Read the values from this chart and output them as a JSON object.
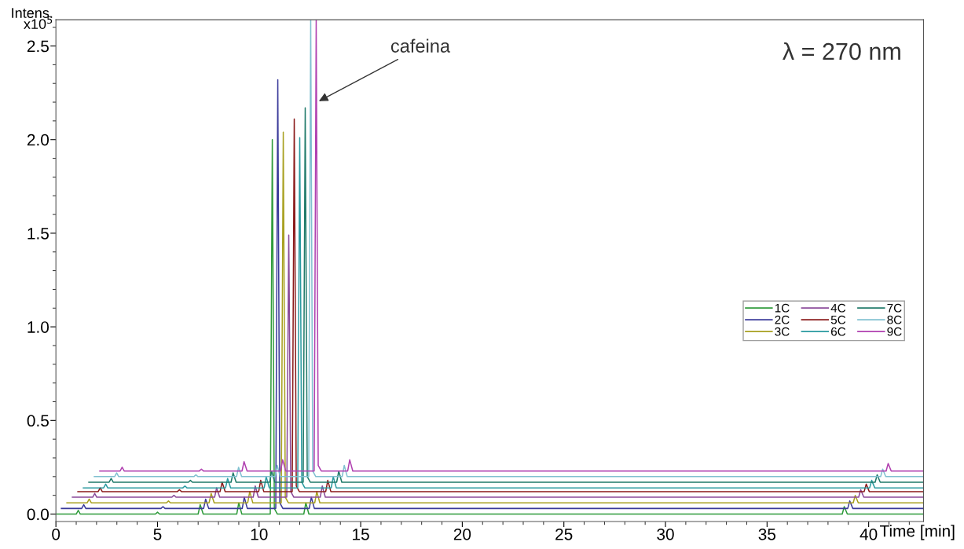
{
  "chart_data": {
    "type": "line",
    "ylabel": "Intens.\nx10$^{5}$",
    "xlabel": "Time [min]",
    "annotations": [
      {
        "text": "cafeina",
        "x": 12.85,
        "y": 2.2
      },
      "λ = 270 nm"
    ],
    "xlim": [
      0,
      42.7
    ],
    "ylim": [
      -0.04,
      2.64
    ],
    "xticks": [
      0,
      5,
      10,
      15,
      20,
      25,
      30,
      35,
      40
    ],
    "yticks": [
      {
        "value": 0,
        "label": "0.0"
      },
      {
        "value": 0.5,
        "label": "0.5"
      },
      {
        "value": 1,
        "label": "1.0"
      },
      {
        "value": 1.5,
        "label": "1.5"
      },
      {
        "value": 2,
        "label": "2.0"
      },
      {
        "value": 2.5,
        "label": "2.5"
      }
    ],
    "grid": false,
    "legend": "right",
    "marker": "none",
    "line_style": "solid",
    "series": [
      {
        "name": "1C",
        "color": "#2e9a3a",
        "x": [
          0,
          1.0,
          1.1,
          1.2,
          4.9,
          5.0,
          5.1,
          7.0,
          7.1,
          7.25,
          8.9,
          9.0,
          9.15,
          10.55,
          10.65,
          10.75,
          10.9,
          12.2,
          12.3,
          12.45,
          38.7,
          38.8,
          38.95,
          42.7
        ],
        "values": [
          0,
          0,
          0.02,
          0,
          0,
          0.01,
          0,
          0,
          0.05,
          0,
          0,
          0.06,
          0,
          0,
          2.0,
          0.03,
          0,
          0,
          0.06,
          0,
          0,
          0.04,
          0,
          0
        ]
      },
      {
        "name": "2C",
        "color": "#3a3a9a",
        "x": [
          0.27,
          1.27,
          1.37,
          1.47,
          5.17,
          5.27,
          5.37,
          7.27,
          7.37,
          7.52,
          9.17,
          9.27,
          9.42,
          10.82,
          10.92,
          11.02,
          11.17,
          12.47,
          12.57,
          12.72,
          38.97,
          39.07,
          39.22,
          42.7
        ],
        "values": [
          0.03,
          0.03,
          0.05,
          0.03,
          0.03,
          0.04,
          0.03,
          0.03,
          0.08,
          0.03,
          0.03,
          0.09,
          0.03,
          0.03,
          2.32,
          0.06,
          0.03,
          0.03,
          0.09,
          0.03,
          0.03,
          0.07,
          0.03,
          0.03
        ]
      },
      {
        "name": "3C",
        "color": "#a8a020",
        "x": [
          0.54,
          1.54,
          1.64,
          1.74,
          5.44,
          5.54,
          5.64,
          7.54,
          7.64,
          7.79,
          9.44,
          9.54,
          9.69,
          11.09,
          11.19,
          11.29,
          11.44,
          12.74,
          12.84,
          12.99,
          39.24,
          39.34,
          39.49,
          42.7
        ],
        "values": [
          0.06,
          0.06,
          0.08,
          0.06,
          0.06,
          0.07,
          0.06,
          0.06,
          0.11,
          0.06,
          0.06,
          0.12,
          0.06,
          0.06,
          2.04,
          0.09,
          0.06,
          0.06,
          0.12,
          0.06,
          0.06,
          0.1,
          0.06,
          0.06
        ]
      },
      {
        "name": "4C",
        "color": "#8a4a9a",
        "x": [
          0.81,
          1.81,
          1.91,
          2.01,
          5.71,
          5.81,
          5.91,
          7.81,
          7.91,
          8.06,
          9.71,
          9.81,
          9.96,
          11.36,
          11.46,
          11.56,
          11.71,
          13.01,
          13.11,
          13.26,
          39.51,
          39.61,
          39.76,
          42.7
        ],
        "values": [
          0.09,
          0.09,
          0.11,
          0.09,
          0.09,
          0.1,
          0.09,
          0.09,
          0.14,
          0.09,
          0.09,
          0.15,
          0.09,
          0.09,
          1.49,
          0.12,
          0.09,
          0.09,
          0.15,
          0.09,
          0.09,
          0.13,
          0.09,
          0.09
        ]
      },
      {
        "name": "5C",
        "color": "#8a1a1a",
        "x": [
          1.08,
          2.08,
          2.18,
          2.28,
          5.98,
          6.08,
          6.18,
          8.08,
          8.18,
          8.33,
          9.98,
          10.08,
          10.23,
          11.63,
          11.73,
          11.83,
          11.98,
          13.28,
          13.38,
          13.53,
          39.78,
          39.88,
          40.03,
          42.7
        ],
        "values": [
          0.12,
          0.12,
          0.14,
          0.12,
          0.12,
          0.13,
          0.12,
          0.12,
          0.17,
          0.12,
          0.12,
          0.18,
          0.12,
          0.12,
          2.11,
          0.15,
          0.12,
          0.12,
          0.18,
          0.12,
          0.12,
          0.16,
          0.12,
          0.12
        ]
      },
      {
        "name": "6C",
        "color": "#2a9aa0",
        "x": [
          1.35,
          2.35,
          2.45,
          2.55,
          6.25,
          6.35,
          6.45,
          8.35,
          8.45,
          8.6,
          10.25,
          10.35,
          10.5,
          11.9,
          12.0,
          12.1,
          12.25,
          13.55,
          13.65,
          13.8,
          40.05,
          40.15,
          40.3,
          42.7
        ],
        "values": [
          0.14,
          0.14,
          0.16,
          0.14,
          0.14,
          0.15,
          0.14,
          0.14,
          0.19,
          0.14,
          0.14,
          0.2,
          0.14,
          0.14,
          2.01,
          0.17,
          0.14,
          0.14,
          0.2,
          0.14,
          0.14,
          0.18,
          0.14,
          0.14
        ]
      },
      {
        "name": "7C",
        "color": "#207a6a",
        "x": [
          1.62,
          2.62,
          2.72,
          2.82,
          6.52,
          6.62,
          6.72,
          8.62,
          8.72,
          8.87,
          10.52,
          10.62,
          10.77,
          12.17,
          12.27,
          12.37,
          12.52,
          13.82,
          13.92,
          14.07,
          40.32,
          40.42,
          40.57,
          42.7
        ],
        "values": [
          0.17,
          0.17,
          0.19,
          0.17,
          0.17,
          0.18,
          0.17,
          0.17,
          0.22,
          0.17,
          0.17,
          0.23,
          0.17,
          0.17,
          2.17,
          0.2,
          0.17,
          0.17,
          0.23,
          0.17,
          0.17,
          0.21,
          0.17,
          0.17
        ]
      },
      {
        "name": "8C",
        "color": "#80c0d0",
        "x": [
          1.89,
          2.89,
          2.99,
          3.09,
          6.79,
          6.89,
          6.99,
          8.89,
          8.99,
          9.14,
          10.79,
          10.89,
          11.04,
          12.44,
          12.54,
          12.64,
          12.79,
          14.09,
          14.19,
          14.34,
          40.59,
          40.69,
          40.84,
          42.7
        ],
        "values": [
          0.2,
          0.2,
          0.22,
          0.2,
          0.2,
          0.21,
          0.2,
          0.2,
          0.25,
          0.2,
          0.2,
          0.26,
          0.2,
          0.2,
          2.64,
          0.23,
          0.2,
          0.2,
          0.26,
          0.2,
          0.2,
          0.24,
          0.2,
          0.2
        ]
      },
      {
        "name": "9C",
        "color": "#b040b0",
        "x": [
          2.16,
          3.16,
          3.26,
          3.36,
          7.06,
          7.16,
          7.26,
          9.16,
          9.26,
          9.41,
          11.06,
          11.16,
          11.31,
          12.71,
          12.81,
          12.91,
          13.06,
          14.36,
          14.46,
          14.61,
          40.86,
          40.96,
          41.11,
          42.7
        ],
        "values": [
          0.23,
          0.23,
          0.25,
          0.23,
          0.23,
          0.24,
          0.23,
          0.23,
          0.28,
          0.23,
          0.23,
          0.29,
          0.23,
          0.23,
          2.64,
          0.26,
          0.23,
          0.23,
          0.29,
          0.23,
          0.23,
          0.27,
          0.23,
          0.23
        ]
      }
    ]
  }
}
